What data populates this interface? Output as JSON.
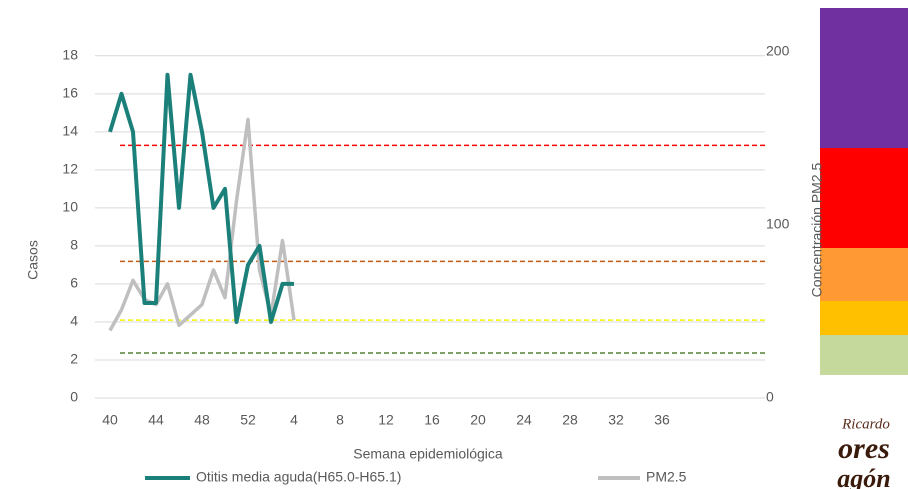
{
  "chart_data": {
    "type": "line",
    "categories": [
      40,
      null,
      null,
      null,
      44,
      null,
      null,
      null,
      48,
      null,
      null,
      null,
      52,
      null,
      null,
      null,
      4,
      null,
      null,
      null,
      8,
      null,
      null,
      null,
      12,
      null,
      null,
      null,
      16,
      null,
      null,
      null,
      20,
      null,
      null,
      null,
      24,
      null,
      null,
      null,
      28,
      null,
      null,
      null,
      32,
      null,
      null,
      null,
      36,
      null,
      null,
      null,
      null,
      null,
      null,
      null,
      null
    ],
    "x_label": "Semana epidemiológica",
    "y_label": "Casos",
    "y2_label": "Concentración PM2.5",
    "ylim": [
      0,
      18.2
    ],
    "yticks": [
      0,
      2,
      4,
      6,
      8,
      10,
      12,
      14,
      16,
      18
    ],
    "y2lim": [
      0,
      200
    ],
    "y2ticks": [
      0,
      100,
      200
    ],
    "grid": true,
    "series": [
      {
        "name": "Otitis media aguda(H65.0-H65.1)",
        "color": "#1b7f7a",
        "values": [
          14,
          16,
          14,
          5,
          5,
          17,
          10,
          17,
          14,
          10,
          11,
          4,
          7,
          8,
          4,
          6,
          6,
          null,
          null,
          null,
          null,
          null,
          null,
          null,
          null,
          null,
          null,
          null,
          null,
          null,
          null,
          null,
          null,
          null,
          null,
          null,
          null,
          null,
          null,
          null,
          null,
          null,
          null,
          null,
          null,
          null,
          null,
          null,
          null,
          null,
          null,
          null,
          null,
          null,
          null,
          null,
          null
        ]
      },
      {
        "name": "PM2.5",
        "color": "#bfbfbf",
        "axis": "y2",
        "values": [
          39,
          51,
          68,
          57,
          54,
          66,
          42,
          48,
          54,
          74,
          58,
          114,
          161,
          74,
          48,
          91,
          45,
          null,
          null,
          null,
          null,
          null,
          null,
          null,
          null,
          null,
          null,
          null,
          null,
          null,
          null,
          null,
          null,
          null,
          null,
          null,
          null,
          null,
          null,
          null,
          null,
          null,
          null,
          null,
          null,
          null,
          null,
          null,
          null,
          null,
          null,
          null,
          null,
          null,
          null,
          null,
          null
        ]
      }
    ],
    "thresholds": [
      {
        "value": 26,
        "color": "#548235",
        "axis": "y2"
      },
      {
        "value": 45,
        "color": "#f2f200",
        "axis": "y2"
      },
      {
        "value": 79,
        "color": "#c55a11",
        "axis": "y2"
      },
      {
        "value": 146,
        "color": "#ff0000",
        "axis": "y2"
      }
    ],
    "logo": [
      "Ricardo",
      "ores",
      "agón"
    ]
  }
}
